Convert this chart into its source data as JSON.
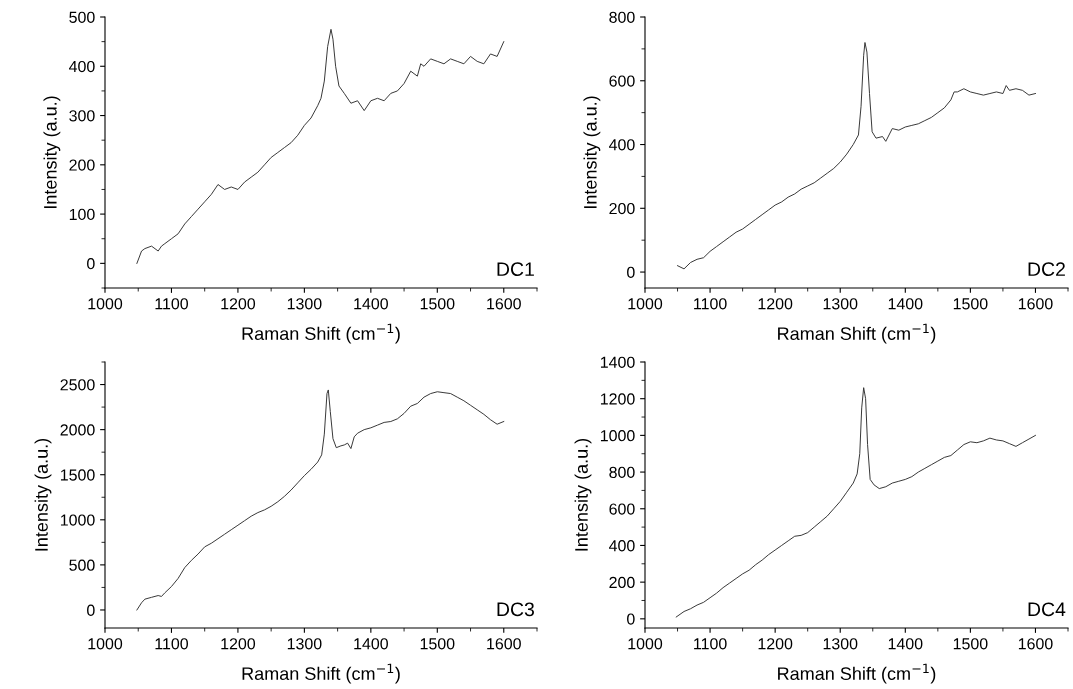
{
  "chart_data": [
    {
      "type": "line",
      "xlabel": "Raman Shift (cm$^{−1}$)",
      "ylabel": "Intensity (a.u.)",
      "annotations": [
        "DC1"
      ],
      "xlim": [
        1000,
        1650
      ],
      "xticks": [
        1000,
        1100,
        1200,
        1300,
        1400,
        1500,
        1600
      ],
      "ylim": [
        -50,
        500
      ],
      "yticks": [
        0,
        100,
        200,
        300,
        400,
        500
      ],
      "grid": false,
      "marker": "none",
      "line_style": "solid",
      "series": [
        {
          "color": "#333333",
          "x": [
            1048,
            1055,
            1060,
            1070,
            1080,
            1085,
            1090,
            1100,
            1110,
            1120,
            1130,
            1140,
            1150,
            1160,
            1170,
            1180,
            1190,
            1200,
            1210,
            1220,
            1230,
            1240,
            1250,
            1260,
            1270,
            1280,
            1290,
            1300,
            1310,
            1320,
            1325,
            1330,
            1335,
            1340,
            1343,
            1347,
            1352,
            1360,
            1370,
            1380,
            1390,
            1400,
            1410,
            1420,
            1430,
            1440,
            1450,
            1460,
            1470,
            1475,
            1480,
            1490,
            1500,
            1510,
            1520,
            1530,
            1540,
            1550,
            1560,
            1570,
            1580,
            1590,
            1600
          ],
          "values": [
            0,
            25,
            30,
            35,
            25,
            35,
            40,
            50,
            60,
            80,
            95,
            110,
            125,
            140,
            160,
            150,
            155,
            150,
            165,
            175,
            185,
            200,
            215,
            225,
            235,
            245,
            260,
            280,
            295,
            320,
            335,
            370,
            440,
            475,
            455,
            400,
            360,
            345,
            325,
            330,
            310,
            330,
            335,
            330,
            345,
            350,
            365,
            390,
            380,
            405,
            400,
            415,
            410,
            405,
            415,
            410,
            405,
            420,
            410,
            405,
            425,
            420,
            450
          ]
        }
      ]
    },
    {
      "type": "line",
      "xlabel": "Raman Shift (cm$^{−1}$)",
      "ylabel": "Intensity (a.u.)",
      "annotations": [
        "DC2"
      ],
      "xlim": [
        1000,
        1650
      ],
      "xticks": [
        1000,
        1100,
        1200,
        1300,
        1400,
        1500,
        1600
      ],
      "ylim": [
        -50,
        800
      ],
      "yticks": [
        0,
        200,
        400,
        600,
        800
      ],
      "grid": false,
      "marker": "none",
      "line_style": "solid",
      "series": [
        {
          "color": "#333333",
          "x": [
            1050,
            1060,
            1070,
            1080,
            1090,
            1100,
            1110,
            1120,
            1130,
            1140,
            1150,
            1160,
            1170,
            1180,
            1190,
            1200,
            1210,
            1220,
            1230,
            1240,
            1250,
            1260,
            1270,
            1280,
            1290,
            1300,
            1310,
            1320,
            1328,
            1332,
            1336,
            1338,
            1341,
            1345,
            1349,
            1355,
            1365,
            1370,
            1380,
            1390,
            1400,
            1410,
            1420,
            1430,
            1440,
            1450,
            1460,
            1470,
            1475,
            1480,
            1490,
            1500,
            1510,
            1520,
            1530,
            1540,
            1550,
            1555,
            1560,
            1570,
            1580,
            1590,
            1600
          ],
          "values": [
            20,
            10,
            30,
            40,
            45,
            65,
            80,
            95,
            110,
            125,
            135,
            150,
            165,
            180,
            195,
            210,
            220,
            235,
            245,
            260,
            270,
            280,
            295,
            310,
            325,
            345,
            370,
            400,
            430,
            520,
            680,
            720,
            690,
            560,
            440,
            420,
            425,
            410,
            450,
            445,
            455,
            460,
            465,
            475,
            485,
            500,
            515,
            540,
            565,
            565,
            575,
            565,
            560,
            555,
            560,
            565,
            560,
            585,
            570,
            575,
            570,
            555,
            560
          ]
        }
      ]
    },
    {
      "type": "line",
      "xlabel": "Raman Shift (cm$^{−1}$)",
      "ylabel": "Intensity (a.u.)",
      "annotations": [
        "DC3"
      ],
      "xlim": [
        1000,
        1650
      ],
      "xticks": [
        1000,
        1100,
        1200,
        1300,
        1400,
        1500,
        1600
      ],
      "ylim": [
        -200,
        2750
      ],
      "yticks": [
        0,
        500,
        1000,
        1500,
        2000,
        2500
      ],
      "grid": false,
      "marker": "none",
      "line_style": "solid",
      "series": [
        {
          "color": "#333333",
          "x": [
            1048,
            1055,
            1060,
            1070,
            1080,
            1085,
            1090,
            1100,
            1110,
            1120,
            1130,
            1140,
            1150,
            1160,
            1170,
            1180,
            1190,
            1200,
            1210,
            1220,
            1230,
            1240,
            1250,
            1260,
            1270,
            1280,
            1290,
            1300,
            1310,
            1320,
            1326,
            1330,
            1334,
            1336,
            1339,
            1343,
            1348,
            1355,
            1360,
            1365,
            1370,
            1375,
            1380,
            1390,
            1400,
            1410,
            1420,
            1430,
            1440,
            1450,
            1460,
            1470,
            1480,
            1490,
            1500,
            1510,
            1520,
            1530,
            1540,
            1550,
            1560,
            1570,
            1580,
            1590,
            1600
          ],
          "values": [
            0,
            80,
            120,
            140,
            160,
            150,
            190,
            260,
            350,
            470,
            550,
            620,
            700,
            740,
            790,
            840,
            890,
            940,
            990,
            1040,
            1080,
            1110,
            1150,
            1200,
            1260,
            1330,
            1410,
            1490,
            1560,
            1640,
            1720,
            1950,
            2400,
            2440,
            2200,
            1900,
            1800,
            1820,
            1830,
            1850,
            1790,
            1920,
            1960,
            2000,
            2020,
            2050,
            2080,
            2090,
            2120,
            2180,
            2260,
            2290,
            2360,
            2400,
            2420,
            2410,
            2400,
            2360,
            2320,
            2270,
            2220,
            2170,
            2110,
            2060,
            2090
          ]
        }
      ]
    },
    {
      "type": "line",
      "xlabel": "Raman Shift (cm$^{−1}$)",
      "ylabel": "Intensity (a.u.)",
      "annotations": [
        "DC4"
      ],
      "xlim": [
        1000,
        1650
      ],
      "xticks": [
        1000,
        1100,
        1200,
        1300,
        1400,
        1500,
        1600
      ],
      "ylim": [
        -50,
        1400
      ],
      "yticks": [
        0,
        200,
        400,
        600,
        800,
        1000,
        1200,
        1400
      ],
      "grid": false,
      "marker": "none",
      "line_style": "solid",
      "series": [
        {
          "color": "#333333",
          "x": [
            1048,
            1060,
            1070,
            1080,
            1090,
            1100,
            1110,
            1120,
            1130,
            1140,
            1150,
            1160,
            1170,
            1180,
            1190,
            1200,
            1210,
            1220,
            1230,
            1240,
            1250,
            1260,
            1270,
            1280,
            1290,
            1300,
            1310,
            1320,
            1326,
            1330,
            1333,
            1336,
            1339,
            1342,
            1346,
            1352,
            1360,
            1370,
            1380,
            1390,
            1400,
            1410,
            1420,
            1430,
            1440,
            1450,
            1460,
            1470,
            1480,
            1490,
            1500,
            1510,
            1520,
            1530,
            1540,
            1550,
            1560,
            1570,
            1580,
            1590,
            1600
          ],
          "values": [
            10,
            40,
            55,
            75,
            90,
            115,
            140,
            170,
            195,
            220,
            245,
            265,
            295,
            320,
            350,
            375,
            400,
            425,
            450,
            455,
            470,
            500,
            530,
            560,
            600,
            640,
            690,
            740,
            790,
            900,
            1150,
            1260,
            1200,
            950,
            760,
            730,
            710,
            720,
            740,
            750,
            760,
            775,
            800,
            820,
            840,
            860,
            880,
            890,
            920,
            950,
            965,
            960,
            970,
            985,
            975,
            970,
            955,
            940,
            960,
            980,
            1000
          ]
        }
      ]
    }
  ]
}
